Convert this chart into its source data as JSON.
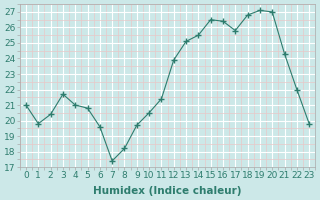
{
  "x": [
    0,
    1,
    2,
    3,
    4,
    5,
    6,
    7,
    8,
    9,
    10,
    11,
    12,
    13,
    14,
    15,
    16,
    17,
    18,
    19,
    20,
    21,
    22,
    23
  ],
  "y": [
    21.0,
    19.8,
    20.4,
    21.7,
    21.0,
    20.8,
    19.6,
    17.4,
    18.2,
    19.7,
    20.5,
    21.4,
    23.9,
    25.1,
    25.5,
    26.5,
    26.4,
    25.8,
    26.8,
    27.1,
    27.0,
    24.3,
    22.0,
    19.8
  ],
  "line_color": "#2e7d6e",
  "marker": "+",
  "marker_size": 4,
  "bg_color": "#cce8e8",
  "grid_major_color": "#ffffff",
  "grid_minor_color": "#e8c8c8",
  "xlabel": "Humidex (Indice chaleur)",
  "xlim": [
    -0.5,
    23.5
  ],
  "ylim": [
    17,
    27.5
  ],
  "yticks": [
    17,
    18,
    19,
    20,
    21,
    22,
    23,
    24,
    25,
    26,
    27
  ],
  "xticks": [
    0,
    1,
    2,
    3,
    4,
    5,
    6,
    7,
    8,
    9,
    10,
    11,
    12,
    13,
    14,
    15,
    16,
    17,
    18,
    19,
    20,
    21,
    22,
    23
  ],
  "tick_labelsize": 6.5,
  "xlabel_fontsize": 7.5
}
